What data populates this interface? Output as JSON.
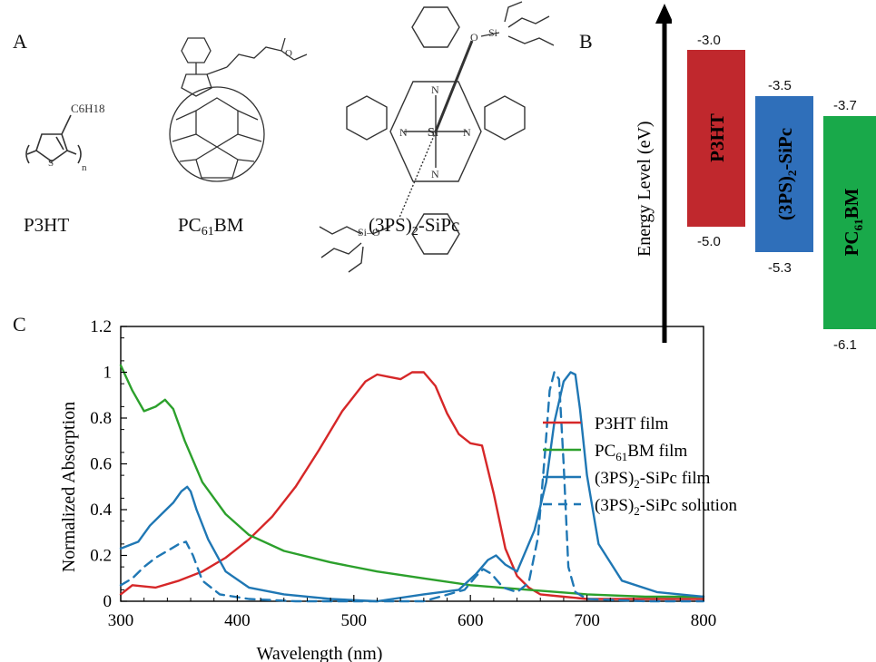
{
  "figure": {
    "panels": {
      "a_letter": "A",
      "b_letter": "B",
      "c_letter": "C"
    },
    "molecules": [
      {
        "label_pre": "P3HT",
        "label_sub": "",
        "label_post": ""
      },
      {
        "label_pre": "PC",
        "label_sub": "61",
        "label_post": "BM"
      },
      {
        "label_pre": "(3PS)",
        "label_sub": "2",
        "label_post": "-SiPc"
      }
    ],
    "structure_text": {
      "p3ht_sidechain": "C6H18",
      "p3ht_s": "S",
      "p3ht_n": "n",
      "sipc_si": "Si",
      "sipc_o_si_top": "O",
      "sipc_si_top": "Si",
      "sipc_si_o_bottom": "Si–O",
      "n": "N"
    },
    "energy": {
      "ylabel": "Energy Level (eV)",
      "bars": [
        {
          "name_pre": "P3HT",
          "name_sub": "",
          "name_post": "",
          "lumo": "-3.0",
          "homo": "-5.0",
          "color": "#c0282d"
        },
        {
          "name_pre": "(3PS)",
          "name_sub": "2",
          "name_post": "-SiPc",
          "lumo": "-3.5",
          "homo": "-5.3",
          "color": "#2f6fba"
        },
        {
          "name_pre": "PC",
          "name_sub": "61",
          "name_post": "BM",
          "lumo": "-3.7",
          "homo": "-6.1",
          "color": "#19a94a"
        }
      ]
    }
  },
  "chart_data": {
    "type": "line",
    "title": "",
    "xlabel": "Wavelength (nm)",
    "ylabel": "Normalized Absorption",
    "xlim": [
      300,
      800
    ],
    "ylim": [
      0,
      1.2
    ],
    "xticks": [
      "300",
      "400",
      "500",
      "600",
      "700",
      "800"
    ],
    "yticks": [
      "0",
      "0.2",
      "0.4",
      "0.6",
      "0.8",
      "1",
      "1.2"
    ],
    "legend_position": "right",
    "series": [
      {
        "name": "P3HT film",
        "label_pre": "P3HT film",
        "label_sub": "",
        "label_post": "",
        "color": "#d62728",
        "dash": "solid",
        "x": [
          300,
          310,
          330,
          350,
          370,
          390,
          410,
          430,
          450,
          470,
          490,
          510,
          520,
          530,
          540,
          550,
          560,
          570,
          580,
          590,
          600,
          610,
          620,
          630,
          640,
          650,
          660,
          680,
          700,
          750,
          800
        ],
        "y": [
          0.03,
          0.07,
          0.06,
          0.09,
          0.13,
          0.19,
          0.27,
          0.37,
          0.5,
          0.66,
          0.83,
          0.96,
          0.99,
          0.98,
          0.97,
          1.0,
          1.0,
          0.94,
          0.82,
          0.73,
          0.69,
          0.68,
          0.47,
          0.23,
          0.11,
          0.06,
          0.03,
          0.02,
          0.01,
          0.01,
          0.01
        ]
      },
      {
        "name": "PC61BM film",
        "label_pre": "PC",
        "label_sub": "61",
        "label_post": "BM film",
        "color": "#2ca02c",
        "dash": "solid",
        "x": [
          300,
          310,
          320,
          330,
          338,
          345,
          355,
          370,
          390,
          410,
          440,
          480,
          520,
          560,
          600,
          650,
          700,
          750,
          800
        ],
        "y": [
          1.03,
          0.92,
          0.83,
          0.85,
          0.88,
          0.84,
          0.7,
          0.52,
          0.38,
          0.29,
          0.22,
          0.17,
          0.13,
          0.1,
          0.07,
          0.05,
          0.03,
          0.02,
          0.02
        ]
      },
      {
        "name": "(3PS)2-SiPc film",
        "label_pre": "(3PS)",
        "label_sub": "2",
        "label_post": "-SiPc film",
        "color": "#1f77b4",
        "dash": "solid",
        "x": [
          300,
          305,
          315,
          325,
          335,
          345,
          352,
          357,
          360,
          365,
          375,
          390,
          410,
          440,
          480,
          520,
          560,
          590,
          605,
          615,
          622,
          630,
          640,
          655,
          665,
          672,
          680,
          686,
          690,
          694,
          700,
          710,
          730,
          760,
          800
        ],
        "y": [
          0.23,
          0.24,
          0.26,
          0.33,
          0.38,
          0.43,
          0.48,
          0.5,
          0.48,
          0.4,
          0.27,
          0.13,
          0.06,
          0.03,
          0.01,
          0.0,
          0.03,
          0.05,
          0.12,
          0.18,
          0.2,
          0.16,
          0.13,
          0.31,
          0.52,
          0.78,
          0.96,
          1.0,
          0.99,
          0.84,
          0.55,
          0.25,
          0.09,
          0.04,
          0.02
        ]
      },
      {
        "name": "(3PS)2-SiPc solution",
        "label_pre": "(3PS)",
        "label_sub": "2",
        "label_post": "-SiPc solution",
        "color": "#1f77b4",
        "dash": "dashed",
        "x": [
          300,
          310,
          320,
          330,
          340,
          350,
          356,
          362,
          370,
          385,
          410,
          450,
          500,
          560,
          595,
          605,
          611,
          618,
          628,
          640,
          650,
          658,
          664,
          668,
          672,
          676,
          680,
          684,
          690,
          700,
          750,
          800
        ],
        "y": [
          0.07,
          0.1,
          0.15,
          0.19,
          0.22,
          0.25,
          0.26,
          0.2,
          0.09,
          0.03,
          0.01,
          0.0,
          0.0,
          0.0,
          0.05,
          0.11,
          0.14,
          0.12,
          0.06,
          0.04,
          0.08,
          0.28,
          0.65,
          0.92,
          1.0,
          0.97,
          0.6,
          0.15,
          0.04,
          0.01,
          0.0,
          0.0
        ]
      }
    ]
  }
}
